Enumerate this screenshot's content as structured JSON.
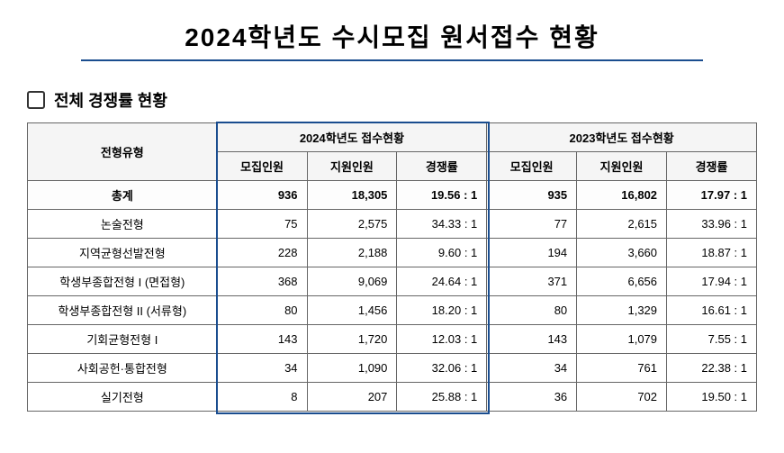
{
  "title": "2024학년도 수시모집 원서접수 현황",
  "section": "전체 경쟁률 현황",
  "headers": {
    "type": "전형유형",
    "year2024": "2024학년도 접수현황",
    "year2023": "2023학년도 접수현황",
    "recruit": "모집인원",
    "apply": "지원인원",
    "ratio": "경쟁률"
  },
  "totalLabel": "총계",
  "total": {
    "r24": "936",
    "a24": "18,305",
    "t24": "19.56 : 1",
    "r23": "935",
    "a23": "16,802",
    "t23": "17.97 : 1"
  },
  "rows": [
    {
      "label": "논술전형",
      "r24": "75",
      "a24": "2,575",
      "t24": "34.33 : 1",
      "r23": "77",
      "a23": "2,615",
      "t23": "33.96 : 1"
    },
    {
      "label": "지역균형선발전형",
      "r24": "228",
      "a24": "2,188",
      "t24": "9.60 : 1",
      "r23": "194",
      "a23": "3,660",
      "t23": "18.87 : 1"
    },
    {
      "label": "학생부종합전형 I (면접형)",
      "r24": "368",
      "a24": "9,069",
      "t24": "24.64 : 1",
      "r23": "371",
      "a23": "6,656",
      "t23": "17.94 : 1"
    },
    {
      "label": "학생부종합전형 II (서류형)",
      "r24": "80",
      "a24": "1,456",
      "t24": "18.20 : 1",
      "r23": "80",
      "a23": "1,329",
      "t23": "16.61 : 1"
    },
    {
      "label": "기회균형전형 I",
      "r24": "143",
      "a24": "1,720",
      "t24": "12.03 : 1",
      "r23": "143",
      "a23": "1,079",
      "t23": "7.55 : 1"
    },
    {
      "label": "사회공헌·통합전형",
      "r24": "34",
      "a24": "1,090",
      "t24": "32.06 : 1",
      "r23": "34",
      "a23": "761",
      "t23": "22.38 : 1"
    },
    {
      "label": "실기전형",
      "r24": "8",
      "a24": "207",
      "t24": "25.88 : 1",
      "r23": "36",
      "a23": "702",
      "t23": "19.50 : 1"
    }
  ],
  "colors": {
    "accent": "#1a4d8f"
  }
}
